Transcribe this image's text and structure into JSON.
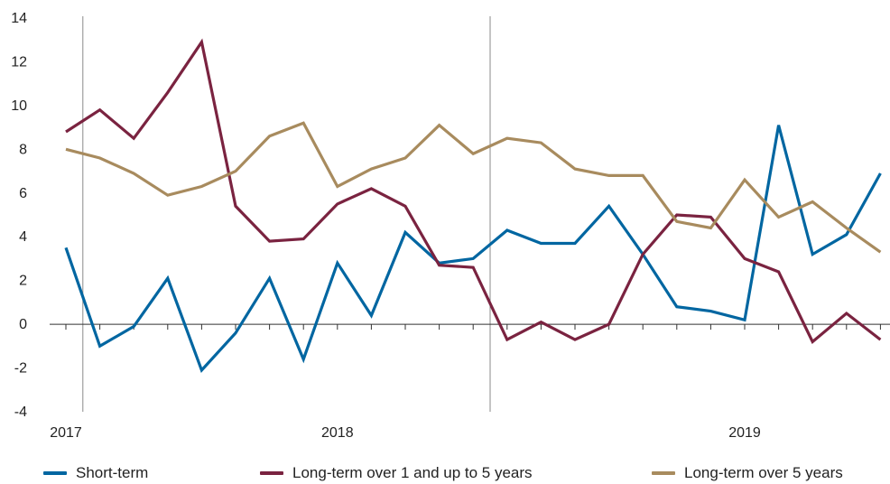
{
  "chart_data": {
    "type": "line",
    "title": "",
    "xlabel": "",
    "ylabel": "",
    "ylim": [
      -4,
      14
    ],
    "y_ticks": [
      -4,
      -2,
      0,
      2,
      4,
      6,
      8,
      10,
      12,
      14
    ],
    "x_year_labels": [
      {
        "label": "2017",
        "index": 0
      },
      {
        "label": "2018",
        "index": 8
      },
      {
        "label": "2019",
        "index": 20
      }
    ],
    "year_separators_after_index": [
      0,
      12
    ],
    "grid": false,
    "legend_position": "bottom",
    "series": [
      {
        "name": "Short-term",
        "color": "#0066a1",
        "values": [
          3.5,
          -1.0,
          -0.1,
          2.1,
          -2.1,
          -0.4,
          2.1,
          -1.6,
          2.8,
          0.4,
          4.2,
          2.8,
          3.0,
          4.3,
          3.7,
          3.7,
          5.4,
          3.2,
          0.8,
          0.6,
          0.2,
          9.1,
          3.2,
          4.1,
          6.9
        ]
      },
      {
        "name": "Long-term over 1 and up to 5 years",
        "color": "#7a2340",
        "values": [
          8.8,
          9.8,
          8.5,
          10.6,
          12.9,
          5.4,
          3.8,
          3.9,
          5.5,
          6.2,
          5.4,
          2.7,
          2.6,
          -0.7,
          0.1,
          -0.7,
          0.0,
          3.2,
          5.0,
          4.9,
          3.0,
          2.4,
          -0.8,
          0.5,
          -0.7
        ]
      },
      {
        "name": "Long-term over 5 years",
        "color": "#a88b5e",
        "values": [
          8.0,
          7.6,
          6.9,
          5.9,
          6.3,
          7.0,
          8.6,
          9.2,
          6.3,
          7.1,
          7.6,
          9.1,
          7.8,
          8.5,
          8.3,
          7.1,
          6.8,
          6.8,
          4.7,
          4.4,
          6.6,
          4.9,
          5.6,
          4.4,
          3.3
        ]
      }
    ]
  }
}
